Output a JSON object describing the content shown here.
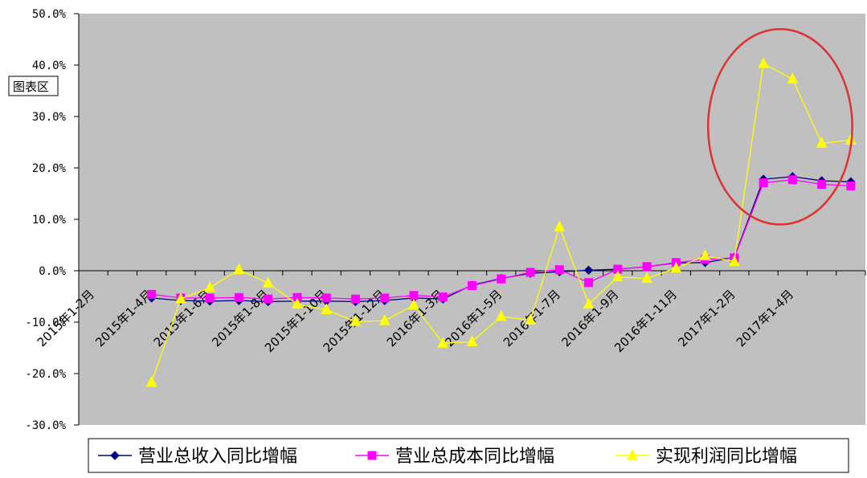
{
  "chart_data": {
    "type": "line",
    "y_axis": {
      "min": -30,
      "max": 50,
      "step": 10,
      "unit": "%",
      "tick_labels": [
        "50.0%",
        "40.0%",
        "30.0%",
        "20.0%",
        "10.0%",
        "0.0%",
        "-10.0%",
        "-20.0%",
        "-30.0%"
      ]
    },
    "x_tick_labels": [
      "2015年1-2月",
      "2015年1-4月",
      "2015年1-6月",
      "2015年1-8月",
      "2015年1-10月",
      "2015年1-12月",
      "2016年1-3月",
      "2016年1-5月",
      "2016年1-7月",
      "2016年1-9月",
      "2016年1-11月",
      "2017年1-2月",
      "2017年1-4月"
    ],
    "point_count": 27,
    "grid": false,
    "legend_position": "bottom",
    "series": [
      {
        "name": "营业总收入同比增幅",
        "color": "#000080",
        "marker": "diamond",
        "values": [
          -5.3,
          -5.8,
          -5.9,
          -5.8,
          -6.0,
          -5.9,
          -5.9,
          -6.0,
          -5.8,
          -5.3,
          -5.5,
          -2.8,
          -1.5,
          -0.5,
          -0.2,
          0.1,
          0.3,
          0.8,
          1.5,
          1.6,
          2.6,
          17.8,
          18.3,
          17.5,
          17.3
        ]
      },
      {
        "name": "营业总成本同比增幅",
        "color": "#FF00FF",
        "marker": "square",
        "values": [
          -4.6,
          -5.3,
          -5.3,
          -5.2,
          -5.5,
          -5.2,
          -5.3,
          -5.5,
          -5.3,
          -4.8,
          -5.1,
          -2.9,
          -1.6,
          -0.3,
          0.2,
          -2.3,
          0.3,
          0.8,
          1.6,
          2.2,
          2.5,
          17.1,
          17.7,
          16.8,
          16.5
        ]
      },
      {
        "name": "实现利润同比增幅",
        "color": "#FFFF00",
        "marker": "triangle",
        "values": [
          -21.7,
          -5.5,
          -3.3,
          0.2,
          -2.4,
          -6.5,
          -7.6,
          -9.9,
          -9.7,
          -6.7,
          -14.1,
          -13.8,
          -8.9,
          -9.6,
          8.5,
          -6.5,
          -1.2,
          -1.5,
          0.5,
          2.9,
          1.8,
          40.3,
          37.3,
          24.8,
          25.4
        ]
      }
    ],
    "series_start_index": 2,
    "annotation": {
      "type": "ellipse",
      "color": "#E03030",
      "x_from_index": 22,
      "x_to_index": 26,
      "y_from": 9,
      "y_to": 47
    }
  },
  "chart_area_tag": "图表区",
  "colors": {
    "plot_background": "#C0C0C0",
    "axis": "#000000"
  }
}
